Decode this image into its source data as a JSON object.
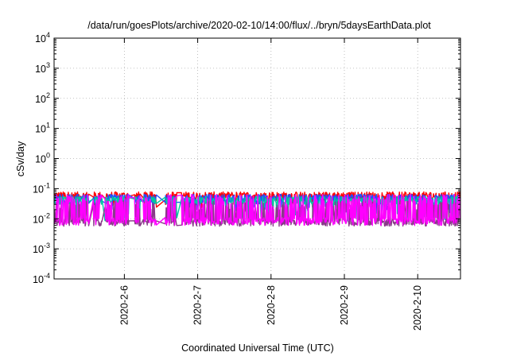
{
  "chart_data": {
    "type": "line",
    "title": "/data/run/goesPlots/archive/2020-02-10/14:00/flux/../bryn/5daysEarthData.plot",
    "xlabel": "Coordinated Universal Time (UTC)",
    "ylabel": "cSv/day",
    "yscale": "log",
    "ylim": [
      0.0001,
      10000
    ],
    "yticks": [
      {
        "value": 0.0001,
        "base": "10",
        "exp": "-4"
      },
      {
        "value": 0.001,
        "base": "10",
        "exp": "-3"
      },
      {
        "value": 0.01,
        "base": "10",
        "exp": "-2"
      },
      {
        "value": 0.1,
        "base": "10",
        "exp": "-1"
      },
      {
        "value": 1,
        "base": "10",
        "exp": "0"
      },
      {
        "value": 10,
        "base": "10",
        "exp": "1"
      },
      {
        "value": 100,
        "base": "10",
        "exp": "2"
      },
      {
        "value": 1000,
        "base": "10",
        "exp": "3"
      },
      {
        "value": 10000,
        "base": "10",
        "exp": "4"
      }
    ],
    "xlim": [
      "2020-02-05T01:00",
      "2020-02-10T14:00"
    ],
    "xticks": [
      {
        "value": "2020-02-06T00:00",
        "label": "2020-2-6"
      },
      {
        "value": "2020-02-07T00:00",
        "label": "2020-2-7"
      },
      {
        "value": "2020-02-08T00:00",
        "label": "2020-2-8"
      },
      {
        "value": "2020-02-09T00:00",
        "label": "2020-2-9"
      },
      {
        "value": "2020-02-10T00:00",
        "label": "2020-2-10"
      }
    ],
    "grid": true,
    "gaps": [
      [
        "2020-02-05T12:20",
        "2020-02-05T13:50"
      ],
      [
        "2020-02-05T16:40",
        "2020-02-05T17:40"
      ],
      [
        "2020-02-06T01:30",
        "2020-02-06T03:20"
      ],
      [
        "2020-02-06T05:10",
        "2020-02-06T06:10"
      ],
      [
        "2020-02-06T10:30",
        "2020-02-06T13:20"
      ],
      [
        "2020-02-06T17:10",
        "2020-02-06T18:40"
      ]
    ],
    "series": [
      {
        "color": "#ff0000",
        "levels": {
          "base": 0.058,
          "spread": 0.35,
          "spike_low": 0.03
        }
      },
      {
        "color": "#2050ff",
        "levels": {
          "base": 0.048,
          "spread": 0.35,
          "spike_low": 0.02
        }
      },
      {
        "color": "#00c8a0",
        "levels": {
          "base": 0.042,
          "spread": 0.3,
          "spike_low": 0.012
        }
      },
      {
        "color": "#8a3a8a",
        "levels": {
          "base": 0.0075,
          "spread": 0.25,
          "spike_high": 0.03
        }
      },
      {
        "color": "#ff00ff",
        "levels": {
          "base": 0.0085,
          "spread": 0.3,
          "spike_high": 0.05
        }
      }
    ]
  }
}
